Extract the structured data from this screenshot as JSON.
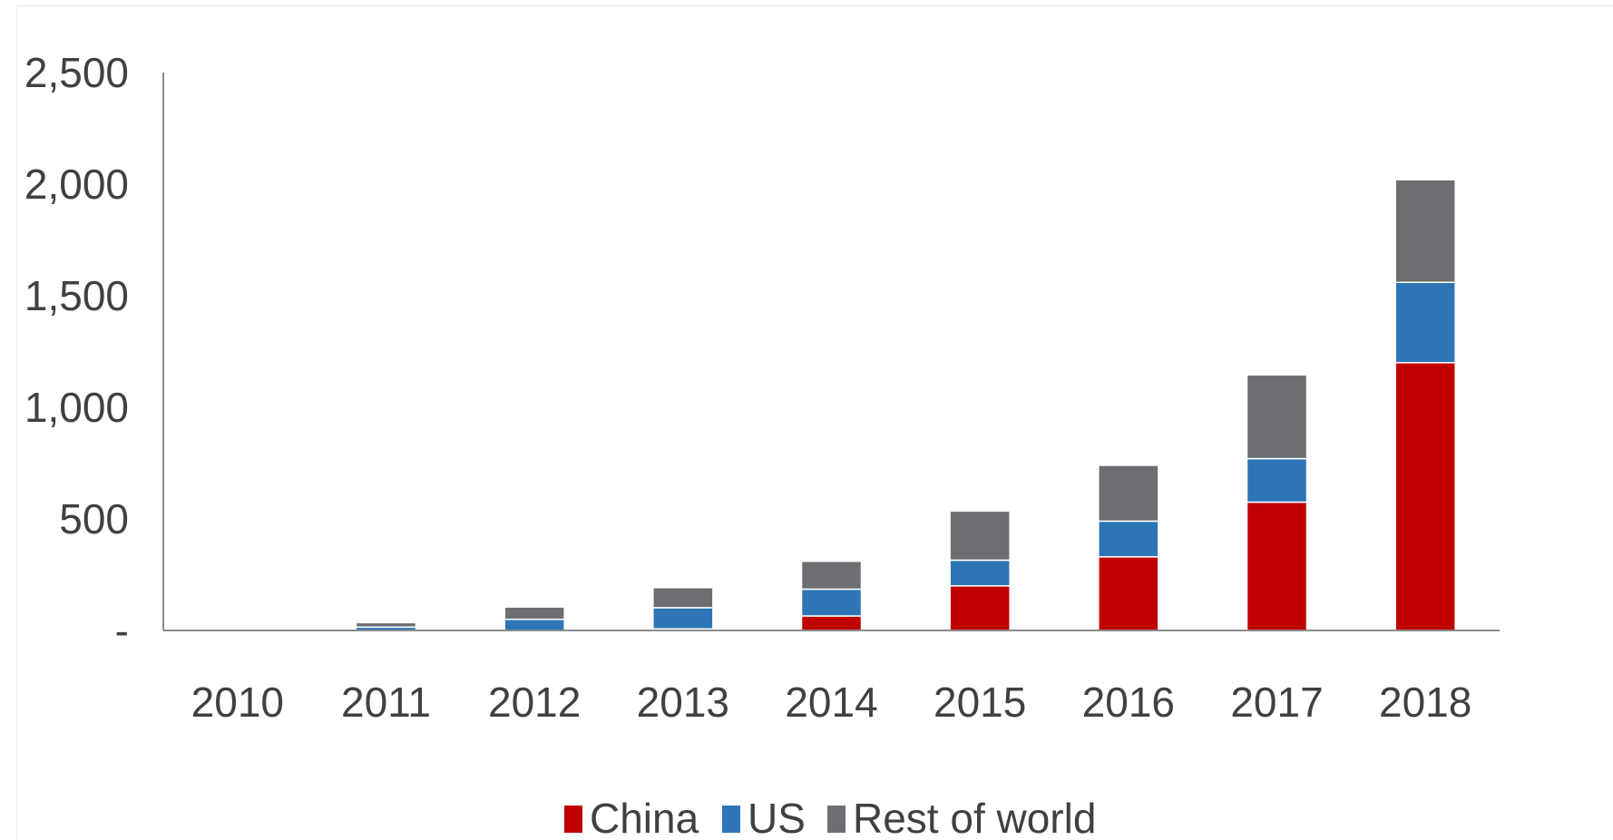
{
  "chart_data": {
    "type": "bar",
    "stacked": true,
    "categories": [
      "2010",
      "2011",
      "2012",
      "2013",
      "2014",
      "2015",
      "2016",
      "2017",
      "2018"
    ],
    "series": [
      {
        "name": "China",
        "color": "#c00000",
        "values": [
          0,
          0,
          0,
          7,
          65,
          200,
          330,
          575,
          1200
        ]
      },
      {
        "name": "US",
        "color": "#2e75b6",
        "values": [
          0,
          15,
          50,
          95,
          120,
          115,
          160,
          195,
          360
        ]
      },
      {
        "name": "Rest of world",
        "color": "#6d6e71",
        "values": [
          5,
          20,
          55,
          90,
          125,
          220,
          250,
          375,
          460
        ]
      }
    ],
    "y_ticks": [
      {
        "value": 0,
        "label": "-"
      },
      {
        "value": 500,
        "label": "500"
      },
      {
        "value": 1000,
        "label": "1,000"
      },
      {
        "value": 1500,
        "label": "1,500"
      },
      {
        "value": 2000,
        "label": "2,000"
      },
      {
        "value": 2500,
        "label": "2,500"
      }
    ],
    "ylim": [
      0,
      2500
    ],
    "grid": false,
    "legend_position": "bottom-center",
    "title": "",
    "xlabel": "",
    "ylabel": ""
  }
}
